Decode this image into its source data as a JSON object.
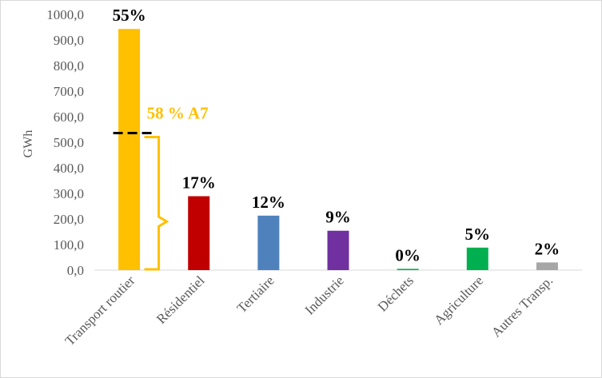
{
  "chart_data": {
    "type": "bar",
    "ylabel": "GWh",
    "ylim": [
      0,
      1000
    ],
    "yticks": [
      "0,0",
      "100,0",
      "200,0",
      "300,0",
      "400,0",
      "500,0",
      "600,0",
      "700,0",
      "800,0",
      "900,0",
      "1000,0"
    ],
    "categories": [
      "Transport routier",
      "Résidentiel",
      "Tertiaire",
      "Industrie",
      "Déchets",
      "Agriculture",
      "Autres Transp."
    ],
    "values": [
      943,
      289,
      213,
      154,
      5,
      88,
      30
    ],
    "percent_labels": [
      "55%",
      "17%",
      "12%",
      "9%",
      "0%",
      "5%",
      "2%"
    ],
    "colors": [
      "#ffc000",
      "#c00000",
      "#4f81bd",
      "#7030a0",
      "#00b050",
      "#00b050",
      "#a6a6a6"
    ],
    "grid": false,
    "annotation": {
      "text": "58 % A7",
      "color": "#ffc000",
      "threshold_value": 536
    }
  }
}
